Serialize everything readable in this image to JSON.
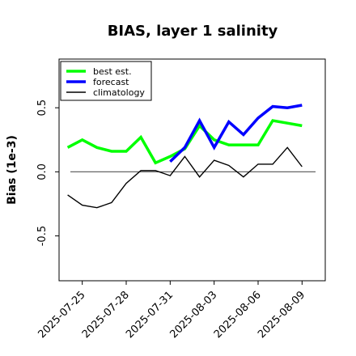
{
  "chart_data": {
    "type": "line",
    "title": "BIAS, layer 1 salinity",
    "ylabel": "Bias (1e-3)",
    "xlabel": "",
    "ylim": [
      -0.85,
      0.88
    ],
    "x_range": [
      "2025-07-23T10:00",
      "2025-08-10T14:00"
    ],
    "yticks": [
      {
        "value": -0.5,
        "label": "-0.5"
      },
      {
        "value": 0.0,
        "label": "0.0"
      },
      {
        "value": 0.5,
        "label": "0.5"
      }
    ],
    "xticks": [
      {
        "date": "2025-07-25",
        "label": "2025-07-25",
        "color": "#000000"
      },
      {
        "date": "2025-07-28",
        "label": "2025-07-28",
        "color": "#000000"
      },
      {
        "date": "2025-07-31",
        "label": "2025-07-31",
        "color": "#008000"
      },
      {
        "date": "2025-08-03",
        "label": "2025-08-03",
        "color": "#000000"
      },
      {
        "date": "2025-08-06",
        "label": "2025-08-06",
        "color": "#000000"
      },
      {
        "date": "2025-08-09",
        "label": "2025-08-09",
        "color": "#000000"
      }
    ],
    "zero_line": true,
    "grid": false,
    "legend_position": "top-left",
    "series": [
      {
        "name": "best est.",
        "color": "#00ff00",
        "linewidth": "thick",
        "points": [
          {
            "x": "2025-07-24",
            "y": 0.19
          },
          {
            "x": "2025-07-25",
            "y": 0.25
          },
          {
            "x": "2025-07-26",
            "y": 0.19
          },
          {
            "x": "2025-07-27",
            "y": 0.16
          },
          {
            "x": "2025-07-28",
            "y": 0.16
          },
          {
            "x": "2025-07-29",
            "y": 0.27
          },
          {
            "x": "2025-07-30",
            "y": 0.07
          },
          {
            "x": "2025-07-31",
            "y": 0.12
          },
          {
            "x": "2025-08-01",
            "y": 0.18
          },
          {
            "x": "2025-08-02",
            "y": 0.36
          },
          {
            "x": "2025-08-03",
            "y": 0.25
          },
          {
            "x": "2025-08-04",
            "y": 0.21
          },
          {
            "x": "2025-08-05",
            "y": 0.21
          },
          {
            "x": "2025-08-06",
            "y": 0.21
          },
          {
            "x": "2025-08-07",
            "y": 0.4
          },
          {
            "x": "2025-08-08",
            "y": 0.38
          },
          {
            "x": "2025-08-09",
            "y": 0.36
          }
        ]
      },
      {
        "name": "forecast",
        "color": "#0000ff",
        "linewidth": "thick",
        "points": [
          {
            "x": "2025-07-31",
            "y": 0.08
          },
          {
            "x": "2025-08-01",
            "y": 0.19
          },
          {
            "x": "2025-08-02",
            "y": 0.4
          },
          {
            "x": "2025-08-03",
            "y": 0.19
          },
          {
            "x": "2025-08-04",
            "y": 0.39
          },
          {
            "x": "2025-08-05",
            "y": 0.29
          },
          {
            "x": "2025-08-06",
            "y": 0.42
          },
          {
            "x": "2025-08-07",
            "y": 0.51
          },
          {
            "x": "2025-08-08",
            "y": 0.5
          },
          {
            "x": "2025-08-09",
            "y": 0.52
          }
        ]
      },
      {
        "name": "climatology",
        "color": "#000000",
        "linewidth": "thin",
        "points": [
          {
            "x": "2025-07-24",
            "y": -0.18
          },
          {
            "x": "2025-07-25",
            "y": -0.26
          },
          {
            "x": "2025-07-26",
            "y": -0.28
          },
          {
            "x": "2025-07-27",
            "y": -0.24
          },
          {
            "x": "2025-07-28",
            "y": -0.09
          },
          {
            "x": "2025-07-29",
            "y": 0.01
          },
          {
            "x": "2025-07-30",
            "y": 0.01
          },
          {
            "x": "2025-07-31",
            "y": -0.03
          },
          {
            "x": "2025-08-01",
            "y": 0.12
          },
          {
            "x": "2025-08-02",
            "y": -0.04
          },
          {
            "x": "2025-08-03",
            "y": 0.09
          },
          {
            "x": "2025-08-04",
            "y": 0.05
          },
          {
            "x": "2025-08-05",
            "y": -0.04
          },
          {
            "x": "2025-08-06",
            "y": 0.06
          },
          {
            "x": "2025-08-07",
            "y": 0.06
          },
          {
            "x": "2025-08-08",
            "y": 0.19
          },
          {
            "x": "2025-08-09",
            "y": 0.04
          }
        ]
      }
    ]
  }
}
